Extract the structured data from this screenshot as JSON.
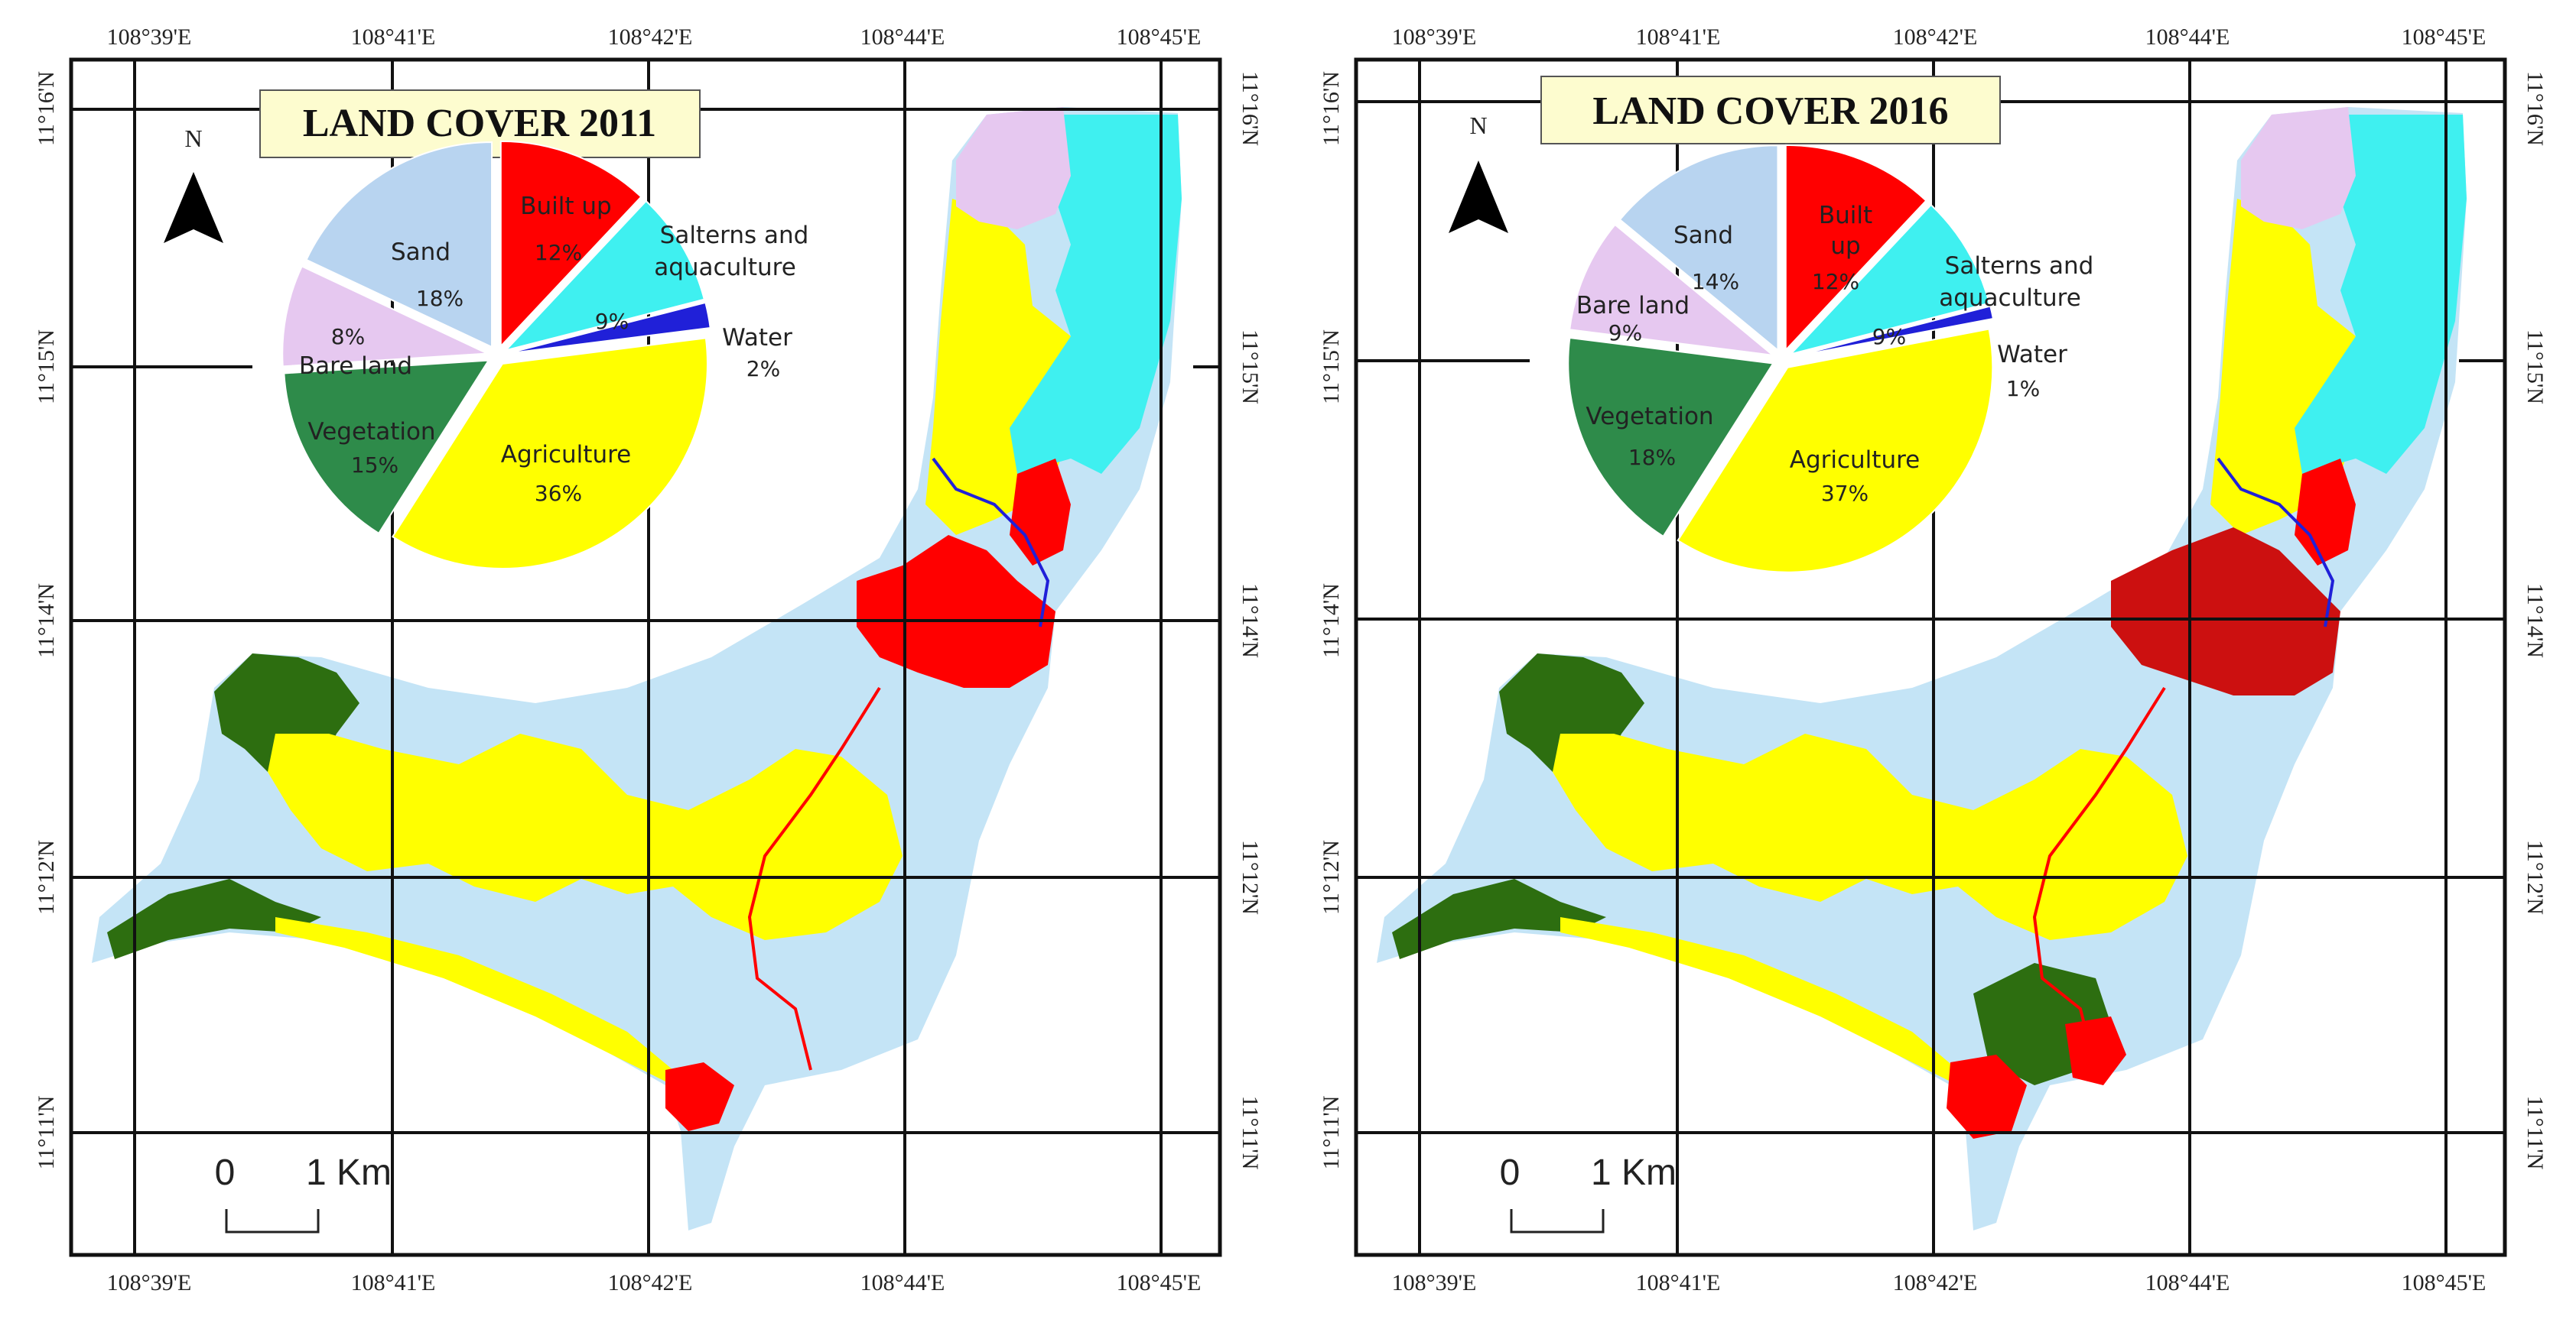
{
  "colors": {
    "builtup": "#ff0000",
    "salterns": "#3ff0f0",
    "water": "#2020d8",
    "agriculture": "#ffff00",
    "vegetation": "#2e8b4a",
    "bareland": "#e6c8f0",
    "sand": "#b8d4f0",
    "map_background": "#c4e4f6",
    "forest": "#2d6e10",
    "title_bg": "#fdfccf"
  },
  "icons": {
    "north_arrow": "north-arrow-icon"
  },
  "maps": [
    {
      "title": "LAND COVER 2011",
      "north_label": "N",
      "scale": {
        "zero": "0",
        "one": "1 Km"
      },
      "lon_ticks": [
        "108°39'E",
        "108°41'E",
        "108°42'E",
        "108°44'E",
        "108°45'E"
      ],
      "lat_ticks": [
        "11°16'N",
        "11°15'N",
        "11°14'N",
        "11°12'N",
        "11°11'N"
      ],
      "chart_data": {
        "type": "pie",
        "title": "",
        "slices": [
          {
            "label": "Built up",
            "value": 12,
            "value_label": "12%",
            "color": "#ff0000"
          },
          {
            "label": "Salterns and aquaculture",
            "value": 9,
            "value_label": "9%",
            "color": "#3ff0f0"
          },
          {
            "label": "Water",
            "value": 2,
            "value_label": "2%",
            "color": "#2020d8"
          },
          {
            "label": "Agriculture",
            "value": 36,
            "value_label": "36%",
            "color": "#ffff00"
          },
          {
            "label": "Vegetation",
            "value": 15,
            "value_label": "15%",
            "color": "#2e8b4a"
          },
          {
            "label": "Bare land",
            "value": 8,
            "value_label": "8%",
            "color": "#e6c8f0"
          },
          {
            "label": "Sand",
            "value": 18,
            "value_label": "18%",
            "color": "#b8d4f0"
          }
        ]
      }
    },
    {
      "title": "LAND COVER 2016",
      "north_label": "N",
      "scale": {
        "zero": "0",
        "one": "1 Km"
      },
      "lon_ticks": [
        "108°39'E",
        "108°41'E",
        "108°42'E",
        "108°44'E",
        "108°45'E"
      ],
      "lat_ticks": [
        "11°16'N",
        "11°15'N",
        "11°14'N",
        "11°12'N",
        "11°11'N"
      ],
      "chart_data": {
        "type": "pie",
        "title": "",
        "slices": [
          {
            "label": "Built up",
            "value": 12,
            "value_label": "12%",
            "color": "#ff0000"
          },
          {
            "label": "Salterns and aquaculture",
            "value": 9,
            "value_label": "9%",
            "color": "#3ff0f0"
          },
          {
            "label": "Water",
            "value": 1,
            "value_label": "1%",
            "color": "#2020d8"
          },
          {
            "label": "Agriculture",
            "value": 37,
            "value_label": "37%",
            "color": "#ffff00"
          },
          {
            "label": "Vegetation",
            "value": 18,
            "value_label": "18%",
            "color": "#2e8b4a"
          },
          {
            "label": "Bare land",
            "value": 9,
            "value_label": "9%",
            "color": "#e6c8f0"
          },
          {
            "label": "Sand",
            "value": 14,
            "value_label": "14%",
            "color": "#b8d4f0"
          }
        ]
      }
    }
  ]
}
